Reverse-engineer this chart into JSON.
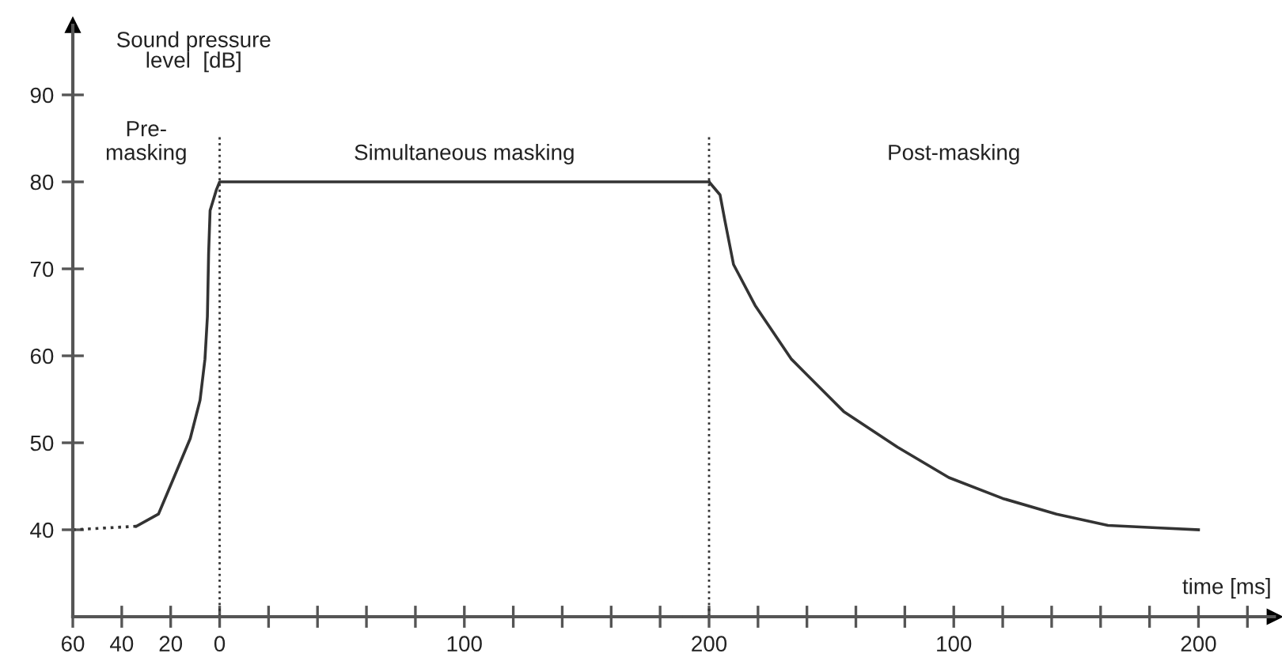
{
  "chart_data": [
    {
      "type": "line",
      "ylabel": "Sound pressure\nlevel  [dB]",
      "series": [
        {
          "color": "#333333",
          "line_style": "solid",
          "x": [
            -34,
            -25,
            -19,
            -12,
            -8,
            -6,
            -5,
            -4.5,
            -3.9,
            -1.3,
            0,
            200
          ],
          "values": [
            40.4,
            41.8,
            45.8,
            50.5,
            54.9,
            59.6,
            64.5,
            71.8,
            76.7,
            79.1,
            80,
            80
          ]
        },
        {
          "color": "#333333",
          "line_style": "dotted",
          "x": [
            -60,
            -34
          ],
          "values": [
            40,
            40.4
          ]
        }
      ],
      "ref_lines": [
        {
          "axis": "x",
          "value": 0,
          "color": "#333333",
          "line_style": "dotted"
        }
      ],
      "annotations": [
        "Pre-\nmasking",
        "Simultaneous masking"
      ],
      "xlim": [
        -60,
        200
      ],
      "ylim": [
        30,
        98
      ],
      "xticks": [
        {
          "value": -60,
          "label": "60"
        },
        {
          "value": -40,
          "label": "40"
        },
        {
          "value": -20,
          "label": "20"
        },
        0,
        {
          "value": 20,
          "label": null
        },
        {
          "value": 40,
          "label": null
        },
        {
          "value": 60,
          "label": null
        },
        {
          "value": 80,
          "label": null
        },
        100,
        {
          "value": 120,
          "label": null
        },
        {
          "value": 140,
          "label": null
        },
        {
          "value": 160,
          "label": null
        },
        {
          "value": 180,
          "label": null
        },
        200
      ],
      "yticks": [
        40,
        50,
        60,
        70,
        80,
        90
      ],
      "marker": "none"
    },
    {
      "type": "line",
      "xlabel": "time [ms]",
      "series": [
        {
          "color": "#333333",
          "line_style": "solid",
          "x": [
            0,
            4.5,
            6.5,
            10,
            18.8,
            33.7,
            55,
            77,
            98,
            120,
            142,
            163,
            184.5,
            200
          ],
          "values": [
            80,
            78.5,
            75.5,
            70.5,
            65.8,
            59.6,
            53.6,
            49.5,
            46,
            43.6,
            41.8,
            40.5,
            40.2,
            40
          ]
        }
      ],
      "ref_lines": [
        {
          "axis": "x",
          "value": 0,
          "color": "#333333",
          "line_style": "dotted"
        }
      ],
      "annotations": [
        "Post-masking"
      ],
      "xlim": [
        -10,
        231
      ],
      "ylim": [
        30,
        90
      ],
      "xticks": [
        {
          "value": 20,
          "label": null
        },
        {
          "value": 40,
          "label": null
        },
        {
          "value": 60,
          "label": null
        },
        {
          "value": 80,
          "label": null
        },
        100,
        {
          "value": 120,
          "label": null
        },
        {
          "value": 140,
          "label": null
        },
        {
          "value": 160,
          "label": null
        },
        {
          "value": 180,
          "label": null
        },
        200,
        {
          "value": 220,
          "label": null
        }
      ],
      "yticks": [
        40,
        50,
        60,
        70,
        80,
        90
      ],
      "tick_labels": "x",
      "marker": "none"
    }
  ]
}
